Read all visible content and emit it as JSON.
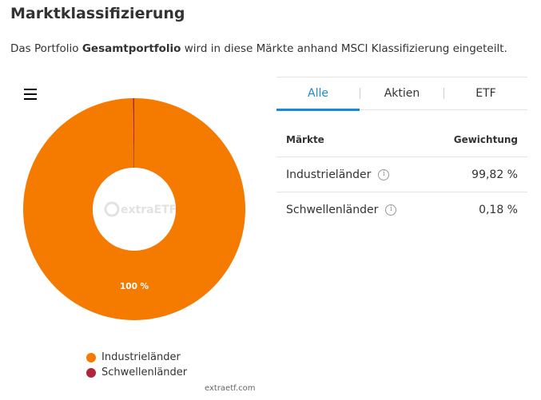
{
  "title": "Marktklassifizierung",
  "subtitle": {
    "before": "Das Portfolio ",
    "portfolio": "Gesamtportfolio",
    "after": " wird in diese Märkte anhand MSCI Klassifizierung eingeteilt."
  },
  "menu_icon": "hamburger-menu-icon",
  "watermark": "extraETF",
  "credit": "extraetf.com",
  "tabs": [
    {
      "label": "Alle",
      "active": true
    },
    {
      "label": "Aktien",
      "active": false
    },
    {
      "label": "ETF",
      "active": false
    }
  ],
  "table": {
    "headers": {
      "market": "Märkte",
      "weight": "Gewichtung"
    },
    "rows": [
      {
        "name": "Industrieländer",
        "weight": "99,82 %"
      },
      {
        "name": "Schwellenländer",
        "weight": "0,18 %"
      }
    ]
  },
  "colors": {
    "industrie": "#f47b00",
    "schwellen": "#b0253a",
    "accent": "#1a8bd3"
  },
  "chart_data": {
    "type": "pie",
    "donut": true,
    "categories": [
      "Industrieländer",
      "Schwellenländer"
    ],
    "values": [
      99.82,
      0.18
    ],
    "data_labels": [
      "100 %",
      ""
    ],
    "legend": [
      "Industrieländer",
      "Schwellenländer"
    ],
    "legend_placement": "bottom"
  }
}
